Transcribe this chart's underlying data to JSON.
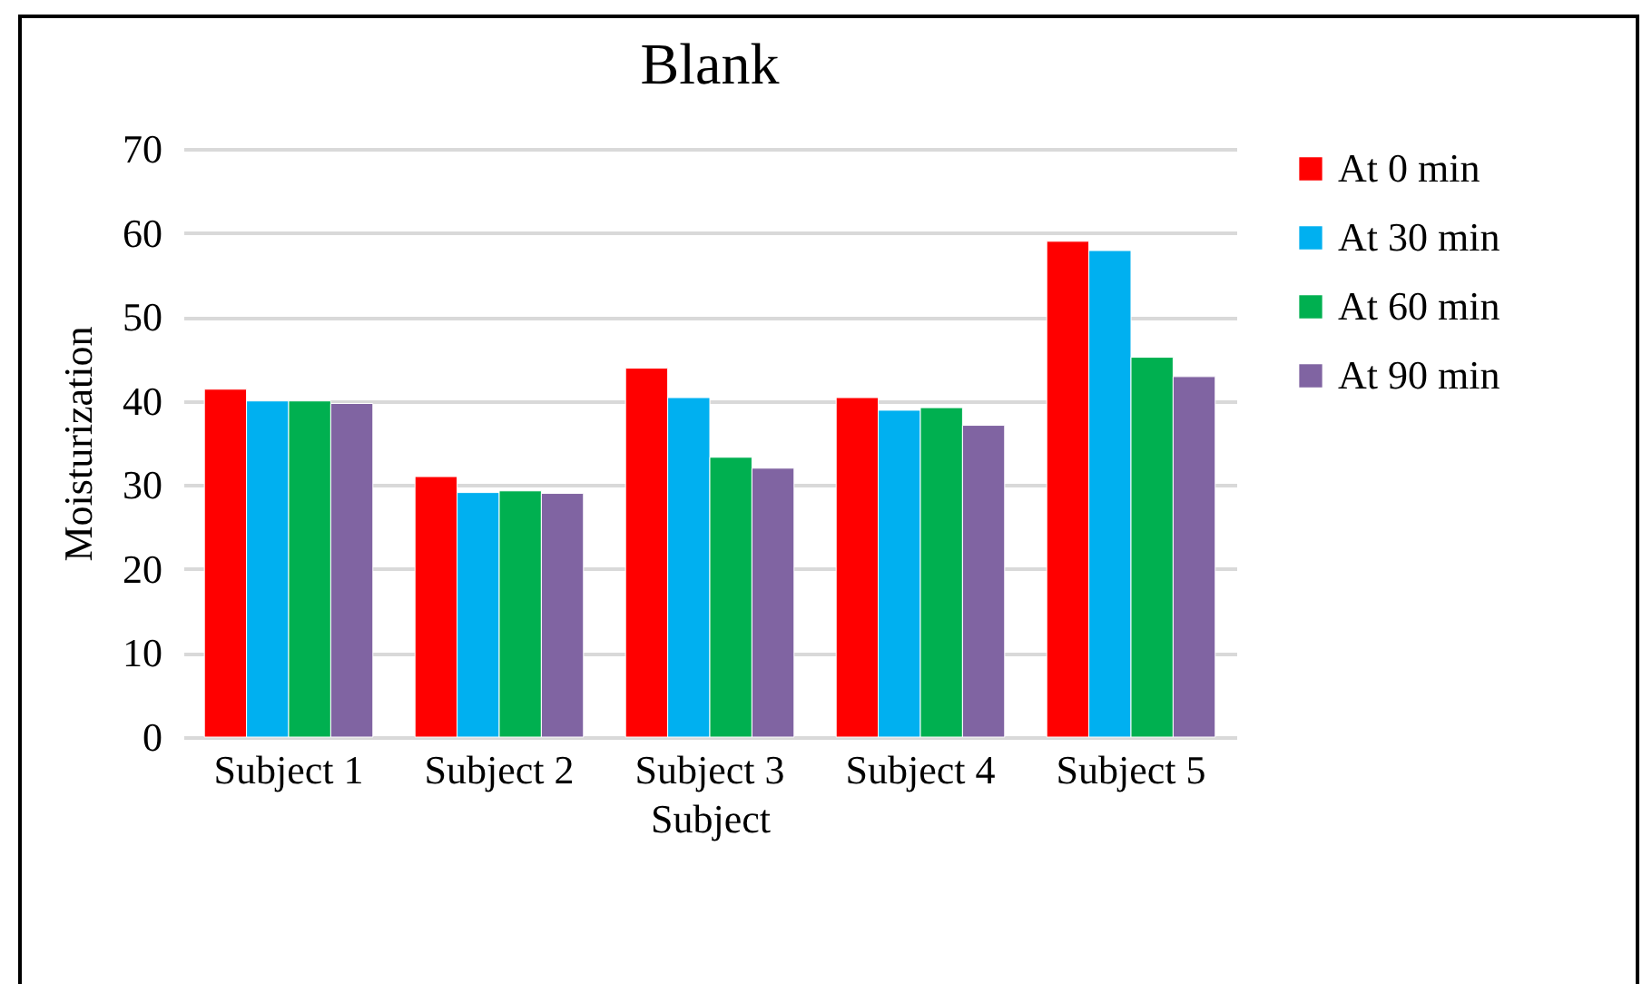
{
  "chart_data": {
    "type": "bar",
    "title": "Blank",
    "xlabel": "Subject",
    "ylabel": "Moisturization",
    "categories": [
      "Subject 1",
      "Subject 2",
      "Subject 3",
      "Subject 4",
      "Subject 5"
    ],
    "series": [
      {
        "name": "At 0 min",
        "color": "#ff0000",
        "values": [
          41.4,
          31.0,
          43.9,
          40.4,
          59.0
        ]
      },
      {
        "name": "At 30 min",
        "color": "#00b0f0",
        "values": [
          40.0,
          29.1,
          40.4,
          38.9,
          57.9
        ]
      },
      {
        "name": "At 60 min",
        "color": "#00b050",
        "values": [
          40.0,
          29.3,
          33.3,
          39.2,
          45.2
        ]
      },
      {
        "name": "At 90 min",
        "color": "#8064a2",
        "values": [
          39.7,
          29.0,
          32.0,
          37.1,
          42.9
        ]
      }
    ],
    "ylim": [
      0,
      70
    ],
    "yticks": [
      0,
      10,
      20,
      30,
      40,
      50,
      60,
      70
    ],
    "grid": "y",
    "legend": "right"
  }
}
